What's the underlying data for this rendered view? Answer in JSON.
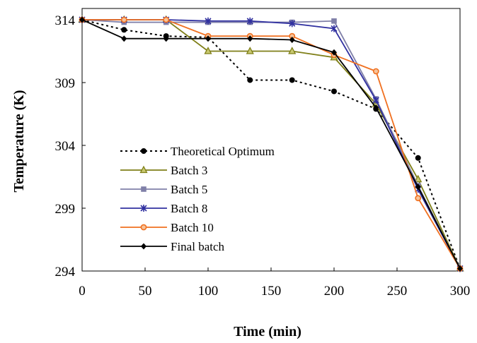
{
  "chart_data": {
    "type": "line",
    "title": "",
    "xlabel": "Time (min)",
    "ylabel": "Temperature (K)",
    "xlim": [
      0,
      300
    ],
    "ylim": [
      294,
      314
    ],
    "xticks": [
      0,
      50,
      100,
      150,
      200,
      250,
      300
    ],
    "yticks": [
      294,
      299,
      304,
      309,
      314
    ],
    "grid": false,
    "legend_position": "left",
    "x": [
      0,
      33.3,
      66.7,
      100,
      133.3,
      166.7,
      200,
      233.3,
      266.7,
      300
    ],
    "series": [
      {
        "name": "Theoretical Optimum",
        "color": "#000000",
        "dash": "dotted",
        "marker": "circle",
        "values": [
          314,
          313.2,
          312.7,
          312.6,
          309.2,
          309.2,
          308.3,
          306.9,
          303.0,
          294.2
        ]
      },
      {
        "name": "Batch 3",
        "color": "#7f7f18",
        "dash": "solid",
        "marker": "triangle",
        "values": [
          314,
          314,
          314,
          311.5,
          311.5,
          311.5,
          311.0,
          307.3,
          301.3,
          294.2
        ]
      },
      {
        "name": "Batch 5",
        "color": "#8080a8",
        "dash": "solid",
        "marker": "square",
        "values": [
          314,
          313.8,
          313.8,
          313.8,
          313.8,
          313.8,
          313.9,
          307.7,
          300.8,
          294.2
        ]
      },
      {
        "name": "Batch 8",
        "color": "#3030a0",
        "dash": "solid",
        "marker": "star",
        "values": [
          314,
          314,
          314,
          313.9,
          313.9,
          313.7,
          313.3,
          307.6,
          300.5,
          294.2
        ]
      },
      {
        "name": "Batch 10",
        "color": "#f07020",
        "dash": "solid",
        "marker": "circle-open",
        "values": [
          314,
          314,
          314,
          312.7,
          312.7,
          312.7,
          311.2,
          309.9,
          299.8,
          294.2
        ]
      },
      {
        "name": "Final batch",
        "color": "#000000",
        "dash": "solid",
        "marker": "diamond",
        "values": [
          314,
          312.5,
          312.5,
          312.5,
          312.5,
          312.4,
          311.4,
          307.0,
          300.7,
          294.2
        ]
      }
    ]
  }
}
